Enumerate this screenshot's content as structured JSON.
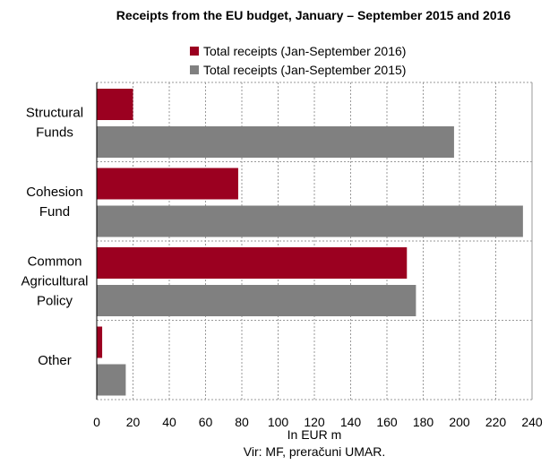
{
  "chart_data": {
    "type": "bar",
    "orientation": "horizontal",
    "title": "Receipts from the EU budget, January – September 2015 and 2016",
    "categories": [
      [
        "Structural",
        "Funds"
      ],
      [
        "Cohesion",
        "Fund"
      ],
      [
        "Common",
        "Agricultural",
        "Policy"
      ],
      [
        "Other"
      ]
    ],
    "series": [
      {
        "name": "Total receipts (Jan-September 2016)",
        "color": "#9b0020",
        "values": [
          20,
          78,
          171,
          3
        ]
      },
      {
        "name": "Total receipts (Jan-September 2015)",
        "color": "#808080",
        "values": [
          197,
          235,
          176,
          16
        ]
      }
    ],
    "xlabel": "In EUR m",
    "xlim": [
      0,
      240
    ],
    "xticks": [
      0,
      20,
      40,
      60,
      80,
      100,
      120,
      140,
      160,
      180,
      200,
      220,
      240
    ],
    "grid": true,
    "legend_position": "top"
  },
  "source": "Vir: MF, preračuni UMAR."
}
